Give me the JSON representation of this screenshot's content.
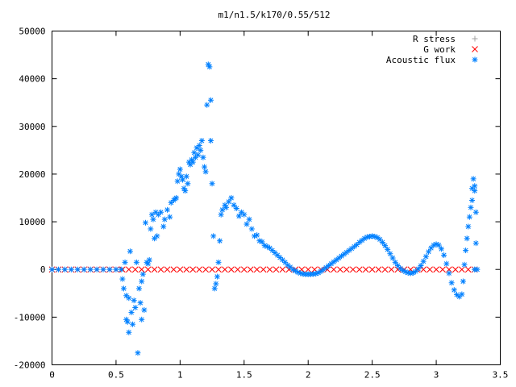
{
  "chart_data": {
    "type": "scatter",
    "title": "m1/n1.5/k170/0.55/512",
    "xlabel": "",
    "ylabel": "",
    "xlim": [
      0,
      3.5
    ],
    "ylim": [
      -20000,
      50000
    ],
    "x_ticks": [
      "0",
      "0.5",
      "1",
      "1.5",
      "2",
      "2.5",
      "3",
      "3.5"
    ],
    "y_ticks": [
      "-20000",
      "-10000",
      "0",
      "10000",
      "20000",
      "30000",
      "40000",
      "50000"
    ],
    "legend_position": "top-right",
    "grid": false,
    "series": [
      {
        "name": "R stress",
        "marker": "+",
        "color": "#a0a0a0",
        "points": [
          [
            0.0,
            0
          ],
          [
            3.3,
            0
          ]
        ]
      },
      {
        "name": "G work",
        "marker": "x",
        "color": "#ff0000",
        "points": [
          [
            0.0,
            0
          ],
          [
            0.05,
            0
          ],
          [
            0.1,
            0
          ],
          [
            0.15,
            0
          ],
          [
            0.2,
            0
          ],
          [
            0.25,
            0
          ],
          [
            0.3,
            0
          ],
          [
            0.35,
            0
          ],
          [
            0.4,
            0
          ],
          [
            0.45,
            0
          ],
          [
            0.5,
            0
          ],
          [
            0.55,
            0
          ],
          [
            0.6,
            0
          ],
          [
            0.65,
            0
          ],
          [
            0.7,
            0
          ],
          [
            0.75,
            0
          ],
          [
            0.8,
            0
          ],
          [
            0.85,
            0
          ],
          [
            0.9,
            0
          ],
          [
            0.95,
            0
          ],
          [
            1.0,
            0
          ],
          [
            1.05,
            0
          ],
          [
            1.1,
            0
          ],
          [
            1.15,
            0
          ],
          [
            1.2,
            0
          ],
          [
            1.25,
            0
          ],
          [
            1.3,
            0
          ],
          [
            1.35,
            0
          ],
          [
            1.4,
            0
          ],
          [
            1.45,
            0
          ],
          [
            1.5,
            0
          ],
          [
            1.55,
            0
          ],
          [
            1.6,
            0
          ],
          [
            1.65,
            0
          ],
          [
            1.7,
            0
          ],
          [
            1.75,
            0
          ],
          [
            1.8,
            0
          ],
          [
            1.85,
            0
          ],
          [
            1.9,
            0
          ],
          [
            1.95,
            0
          ],
          [
            2.0,
            0
          ],
          [
            2.05,
            0
          ],
          [
            2.1,
            0
          ],
          [
            2.15,
            0
          ],
          [
            2.2,
            0
          ],
          [
            2.25,
            0
          ],
          [
            2.3,
            0
          ],
          [
            2.35,
            0
          ],
          [
            2.4,
            0
          ],
          [
            2.45,
            0
          ],
          [
            2.5,
            0
          ],
          [
            2.55,
            0
          ],
          [
            2.6,
            0
          ],
          [
            2.65,
            0
          ],
          [
            2.7,
            0
          ],
          [
            2.75,
            0
          ],
          [
            2.8,
            0
          ],
          [
            2.85,
            0
          ],
          [
            2.9,
            0
          ],
          [
            2.95,
            0
          ],
          [
            3.0,
            0
          ],
          [
            3.05,
            0
          ],
          [
            3.1,
            0
          ],
          [
            3.15,
            0
          ],
          [
            3.2,
            0
          ],
          [
            3.25,
            0
          ],
          [
            3.3,
            0
          ]
        ]
      },
      {
        "name": "Acoustic flux",
        "marker": "*",
        "color": "#0080ff",
        "points": [
          [
            0.0,
            0
          ],
          [
            0.05,
            0
          ],
          [
            0.1,
            0
          ],
          [
            0.15,
            0
          ],
          [
            0.2,
            0
          ],
          [
            0.25,
            0
          ],
          [
            0.3,
            0
          ],
          [
            0.35,
            0
          ],
          [
            0.4,
            0
          ],
          [
            0.45,
            0
          ],
          [
            0.5,
            0
          ],
          [
            0.54,
            0
          ],
          [
            0.55,
            -2000
          ],
          [
            0.56,
            -4000
          ],
          [
            0.57,
            1500
          ],
          [
            0.58,
            -5500
          ],
          [
            0.58,
            -10500
          ],
          [
            0.59,
            -11000
          ],
          [
            0.6,
            -13200
          ],
          [
            0.6,
            -6000
          ],
          [
            0.61,
            3800
          ],
          [
            0.62,
            -9000
          ],
          [
            0.63,
            -11500
          ],
          [
            0.64,
            -6500
          ],
          [
            0.65,
            -8000
          ],
          [
            0.66,
            1500
          ],
          [
            0.67,
            -17500
          ],
          [
            0.68,
            -4000
          ],
          [
            0.69,
            -7000
          ],
          [
            0.7,
            -10500
          ],
          [
            0.7,
            -2500
          ],
          [
            0.71,
            -1000
          ],
          [
            0.72,
            -8500
          ],
          [
            0.73,
            9800
          ],
          [
            0.74,
            1500
          ],
          [
            0.75,
            1200
          ],
          [
            0.76,
            2000
          ],
          [
            0.77,
            8500
          ],
          [
            0.78,
            11500
          ],
          [
            0.79,
            10500
          ],
          [
            0.8,
            6500
          ],
          [
            0.81,
            12000
          ],
          [
            0.82,
            7000
          ],
          [
            0.83,
            11500
          ],
          [
            0.85,
            12000
          ],
          [
            0.87,
            9000
          ],
          [
            0.88,
            10500
          ],
          [
            0.9,
            12500
          ],
          [
            0.92,
            11000
          ],
          [
            0.93,
            14000
          ],
          [
            0.95,
            14500
          ],
          [
            0.96,
            14800
          ],
          [
            0.97,
            15000
          ],
          [
            0.98,
            18500
          ],
          [
            0.99,
            20000
          ],
          [
            1.0,
            21000
          ],
          [
            1.01,
            19500
          ],
          [
            1.02,
            18800
          ],
          [
            1.03,
            17000
          ],
          [
            1.04,
            16500
          ],
          [
            1.05,
            19500
          ],
          [
            1.06,
            18000
          ],
          [
            1.07,
            22500
          ],
          [
            1.08,
            22000
          ],
          [
            1.09,
            23000
          ],
          [
            1.1,
            22500
          ],
          [
            1.11,
            24500
          ],
          [
            1.12,
            23500
          ],
          [
            1.13,
            25500
          ],
          [
            1.14,
            24000
          ],
          [
            1.15,
            26000
          ],
          [
            1.16,
            25000
          ],
          [
            1.17,
            27000
          ],
          [
            1.18,
            23500
          ],
          [
            1.19,
            21500
          ],
          [
            1.2,
            20500
          ],
          [
            1.21,
            34500
          ],
          [
            1.22,
            43000
          ],
          [
            1.23,
            42500
          ],
          [
            1.24,
            27000
          ],
          [
            1.24,
            35500
          ],
          [
            1.25,
            18000
          ],
          [
            1.26,
            7000
          ],
          [
            1.27,
            -4000
          ],
          [
            1.28,
            -3000
          ],
          [
            1.29,
            -1500
          ],
          [
            1.3,
            1500
          ],
          [
            1.31,
            6000
          ],
          [
            1.32,
            11500
          ],
          [
            1.33,
            12500
          ],
          [
            1.35,
            13500
          ],
          [
            1.36,
            13000
          ],
          [
            1.38,
            14200
          ],
          [
            1.4,
            15000
          ],
          [
            1.42,
            13500
          ],
          [
            1.44,
            12800
          ],
          [
            1.46,
            11200
          ],
          [
            1.48,
            12000
          ],
          [
            1.5,
            11500
          ],
          [
            1.52,
            9500
          ],
          [
            1.54,
            10500
          ],
          [
            1.56,
            8500
          ],
          [
            1.58,
            7000
          ],
          [
            1.6,
            7200
          ],
          [
            1.62,
            6000
          ],
          [
            1.64,
            5800
          ],
          [
            1.66,
            5000
          ],
          [
            1.68,
            4800
          ],
          [
            1.7,
            4500
          ],
          [
            1.72,
            4000
          ],
          [
            1.74,
            3500
          ],
          [
            1.76,
            3000
          ],
          [
            1.78,
            2500
          ],
          [
            1.8,
            2000
          ],
          [
            1.82,
            1500
          ],
          [
            1.84,
            900
          ],
          [
            1.86,
            500
          ],
          [
            1.88,
            0
          ],
          [
            1.9,
            -300
          ],
          [
            1.92,
            -600
          ],
          [
            1.94,
            -800
          ],
          [
            1.96,
            -950
          ],
          [
            1.98,
            -1000
          ],
          [
            2.0,
            -1000
          ],
          [
            2.02,
            -1000
          ],
          [
            2.04,
            -950
          ],
          [
            2.06,
            -900
          ],
          [
            2.08,
            -700
          ],
          [
            2.1,
            -400
          ],
          [
            2.12,
            0
          ],
          [
            2.14,
            400
          ],
          [
            2.16,
            800
          ],
          [
            2.18,
            1200
          ],
          [
            2.2,
            1600
          ],
          [
            2.22,
            2000
          ],
          [
            2.24,
            2400
          ],
          [
            2.26,
            2800
          ],
          [
            2.28,
            3200
          ],
          [
            2.3,
            3600
          ],
          [
            2.32,
            4000
          ],
          [
            2.34,
            4400
          ],
          [
            2.36,
            4800
          ],
          [
            2.38,
            5200
          ],
          [
            2.4,
            5700
          ],
          [
            2.42,
            6100
          ],
          [
            2.44,
            6500
          ],
          [
            2.46,
            6800
          ],
          [
            2.48,
            6900
          ],
          [
            2.5,
            7000
          ],
          [
            2.52,
            6900
          ],
          [
            2.54,
            6700
          ],
          [
            2.56,
            6300
          ],
          [
            2.58,
            5700
          ],
          [
            2.6,
            5000
          ],
          [
            2.62,
            4200
          ],
          [
            2.64,
            3300
          ],
          [
            2.66,
            2400
          ],
          [
            2.68,
            1500
          ],
          [
            2.7,
            800
          ],
          [
            2.72,
            200
          ],
          [
            2.74,
            -200
          ],
          [
            2.76,
            -500
          ],
          [
            2.78,
            -700
          ],
          [
            2.8,
            -800
          ],
          [
            2.82,
            -700
          ],
          [
            2.84,
            -400
          ],
          [
            2.86,
            100
          ],
          [
            2.88,
            800
          ],
          [
            2.9,
            1700
          ],
          [
            2.92,
            2700
          ],
          [
            2.94,
            3700
          ],
          [
            2.96,
            4500
          ],
          [
            2.98,
            5100
          ],
          [
            3.0,
            5300
          ],
          [
            3.02,
            5100
          ],
          [
            3.04,
            4300
          ],
          [
            3.06,
            3000
          ],
          [
            3.08,
            1200
          ],
          [
            3.1,
            -800
          ],
          [
            3.12,
            -2800
          ],
          [
            3.14,
            -4300
          ],
          [
            3.16,
            -5300
          ],
          [
            3.18,
            -5700
          ],
          [
            3.2,
            -5200
          ],
          [
            3.21,
            -2500
          ],
          [
            3.22,
            1000
          ],
          [
            3.23,
            4000
          ],
          [
            3.24,
            6500
          ],
          [
            3.25,
            9000
          ],
          [
            3.26,
            11000
          ],
          [
            3.27,
            13000
          ],
          [
            3.28,
            14500
          ],
          [
            3.28,
            17000
          ],
          [
            3.29,
            19000
          ],
          [
            3.3,
            17500
          ],
          [
            3.3,
            16500
          ],
          [
            3.31,
            12000
          ],
          [
            3.31,
            5500
          ],
          [
            3.32,
            0
          ],
          [
            3.3,
            0
          ]
        ]
      }
    ]
  }
}
